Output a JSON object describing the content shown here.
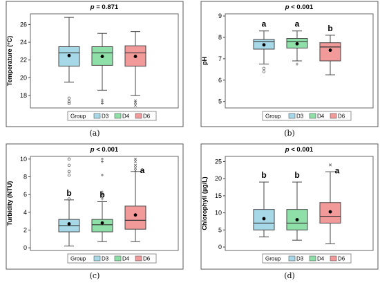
{
  "chart_data": [
    {
      "type": "box",
      "caption": "(a)",
      "title_p": "p",
      "title_rest": " = 0.871",
      "ylabel": "Temperature (°C)",
      "ylim": [
        16.6,
        27.2
      ],
      "yticks": [
        18,
        20,
        22,
        24,
        26
      ],
      "ytick_labels": [
        "18",
        "20",
        "22",
        "24",
        "26"
      ],
      "legend_title": "Group",
      "groups": [
        {
          "name": "D3",
          "color": "#a6d8e8",
          "whisker_low": 19.5,
          "q1": 21.3,
          "median": 22.8,
          "q3": 23.5,
          "whisker_high": 26.8,
          "mean": 22.5,
          "outliers": [
            17.7,
            17.3,
            17.1
          ],
          "outlier_symbol": "circle",
          "letter": ""
        },
        {
          "name": "D4",
          "color": "#8fe0a8",
          "whisker_low": 18.6,
          "q1": 21.4,
          "median": 22.8,
          "q3": 23.5,
          "whisker_high": 25.0,
          "mean": 22.4,
          "outliers": [
            17.5,
            17.3,
            17.1
          ],
          "outlier_symbol": "plus",
          "letter": ""
        },
        {
          "name": "D6",
          "color": "#f29a9a",
          "whisker_low": 18.0,
          "q1": 21.3,
          "median": 22.8,
          "q3": 23.6,
          "whisker_high": 25.2,
          "mean": 22.4,
          "outliers": [
            17.4,
            17.2,
            16.9
          ],
          "outlier_symbol": "x",
          "letter": ""
        }
      ]
    },
    {
      "type": "box",
      "caption": "(b)",
      "title_p": "p",
      "title_rest": " < 0.001",
      "ylabel": "pH",
      "ylim": [
        4.7,
        9.1
      ],
      "yticks": [
        5,
        6,
        7,
        8,
        9
      ],
      "ytick_labels": [
        "5",
        "6",
        "7",
        "8",
        "9"
      ],
      "legend_title": "Group",
      "groups": [
        {
          "name": "D3",
          "color": "#a6d8e8",
          "whisker_low": 6.75,
          "q1": 7.45,
          "median": 7.8,
          "q3": 7.9,
          "whisker_high": 8.3,
          "mean": 7.65,
          "outliers": [
            6.55,
            6.4
          ],
          "outlier_symbol": "circle",
          "letter": "a"
        },
        {
          "name": "D4",
          "color": "#8fe0a8",
          "whisker_low": 6.9,
          "q1": 7.5,
          "median": 7.8,
          "q3": 7.95,
          "whisker_high": 8.3,
          "mean": 7.7,
          "outliers": [
            6.75
          ],
          "outlier_symbol": "plus",
          "letter": "a"
        },
        {
          "name": "D6",
          "color": "#f29a9a",
          "whisker_low": 6.25,
          "q1": 6.9,
          "median": 7.55,
          "q3": 7.75,
          "whisker_high": 8.1,
          "mean": 7.4,
          "outliers": [],
          "outlier_symbol": "x",
          "letter": "b"
        }
      ]
    },
    {
      "type": "box",
      "caption": "(c)",
      "title_p": "p",
      "title_rest": " < 0.001",
      "ylabel": "Turbidity (NTU)",
      "ylim": [
        -0.3,
        10.3
      ],
      "yticks": [
        0,
        2,
        4,
        6,
        8,
        10
      ],
      "ytick_labels": [
        "0",
        "2",
        "4",
        "6",
        "8",
        "10"
      ],
      "legend_title": "Group",
      "groups": [
        {
          "name": "D3",
          "color": "#a6d8e8",
          "whisker_low": 0.2,
          "q1": 1.8,
          "median": 2.5,
          "q3": 3.2,
          "whisker_high": 5.4,
          "mean": 2.7,
          "outliers": [
            5.5,
            8.2,
            8.6,
            9.3,
            10.0
          ],
          "outlier_symbol": "circle",
          "letter": "b"
        },
        {
          "name": "D4",
          "color": "#8fe0a8",
          "whisker_low": 0.7,
          "q1": 1.8,
          "median": 2.6,
          "q3": 3.2,
          "whisker_high": 5.2,
          "mean": 2.8,
          "outliers": [
            5.5,
            6.0,
            6.3,
            8.2,
            9.7,
            10.0
          ],
          "outlier_symbol": "plus",
          "letter": "b"
        },
        {
          "name": "D6",
          "color": "#f29a9a",
          "whisker_low": 0.7,
          "q1": 2.1,
          "median": 3.1,
          "q3": 4.7,
          "whisker_high": 8.6,
          "mean": 3.7,
          "outliers": [
            8.7,
            9.0,
            9.3,
            9.7,
            10.0
          ],
          "outlier_symbol": "x",
          "letter": "a"
        }
      ]
    },
    {
      "type": "box",
      "caption": "(d)",
      "title_p": "p",
      "title_rest": " < 0.001",
      "ylabel": "Chlorophyll (µg/L)",
      "ylim": [
        -1,
        26.5
      ],
      "yticks": [
        0,
        5,
        10,
        15,
        20,
        25
      ],
      "ytick_labels": [
        "0",
        "5",
        "10",
        "15",
        "20",
        "25"
      ],
      "legend_title": "Group",
      "groups": [
        {
          "name": "D3",
          "color": "#a6d8e8",
          "whisker_low": 3.0,
          "q1": 5.0,
          "median": 7.0,
          "q3": 11.0,
          "whisker_high": 19.0,
          "mean": 8.3,
          "outliers": [],
          "outlier_symbol": "circle",
          "letter": "b"
        },
        {
          "name": "D4",
          "color": "#8fe0a8",
          "whisker_low": 2.0,
          "q1": 5.0,
          "median": 7.0,
          "q3": 11.0,
          "whisker_high": 19.0,
          "mean": 8.0,
          "outliers": [],
          "outlier_symbol": "plus",
          "letter": "b"
        },
        {
          "name": "D6",
          "color": "#f29a9a",
          "whisker_low": 1.0,
          "q1": 7.0,
          "median": 9.0,
          "q3": 13.0,
          "whisker_high": 22.0,
          "mean": 10.3,
          "outliers": [
            24.0
          ],
          "outlier_symbol": "x",
          "letter": "a"
        }
      ]
    }
  ]
}
